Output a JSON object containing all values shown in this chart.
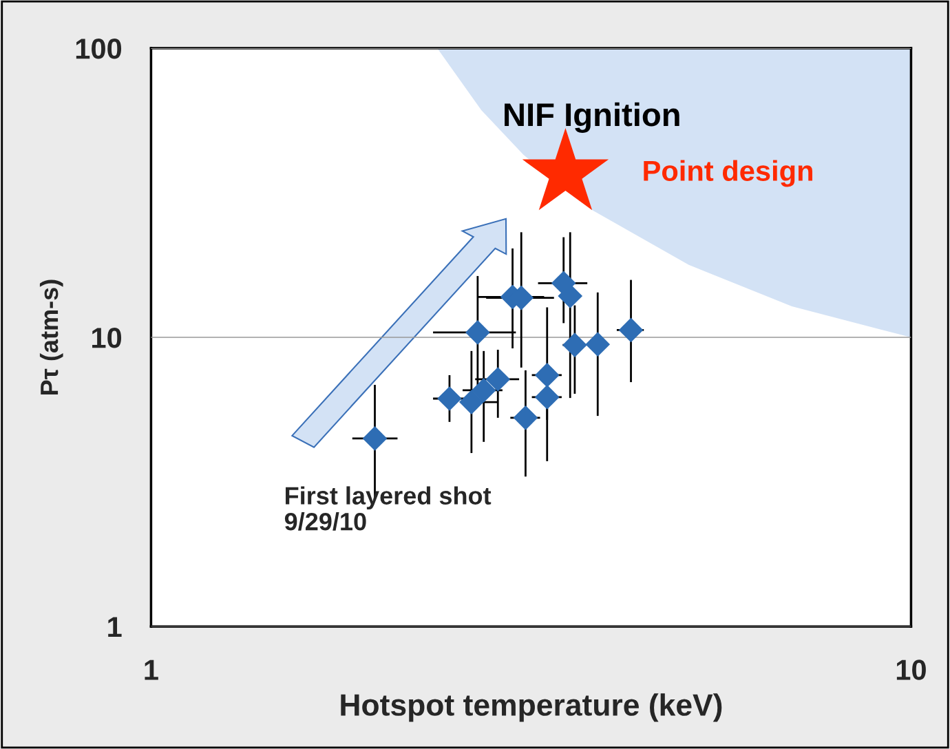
{
  "chart_data": {
    "type": "scatter",
    "xlabel": "Hotspot temperature (keV)",
    "ylabel": "Pτ (atm-s)",
    "log": "xy",
    "xlim": [
      1,
      10
    ],
    "ylim": [
      1,
      100
    ],
    "xticks": [
      1,
      10
    ],
    "yticks": [
      1,
      10,
      100
    ],
    "grid": "y",
    "legend": false,
    "series": [
      {
        "name": "NIF Ignition",
        "type": "area",
        "color": "#d3e2f5",
        "x": [
          2.38,
          2.72,
          3.09,
          3.8,
          5.1,
          6.97,
          10,
          10
        ],
        "values": [
          100,
          61.1,
          42.8,
          27.6,
          17.8,
          12.8,
          10,
          100
        ]
      },
      {
        "marker": "diamond",
        "color": "#2e6db4",
        "x": [
          1.97,
          2.47,
          2.64,
          2.74,
          2.86,
          2.69,
          2.99,
          3.07,
          3.49,
          3.56,
          3.61,
          3.87,
          4.28,
          3.32,
          3.32,
          3.11
        ],
        "values": [
          4.47,
          6.14,
          5.97,
          6.56,
          7.16,
          10.4,
          13.8,
          13.7,
          15.4,
          13.9,
          9.41,
          9.46,
          10.6,
          7.4,
          6.21,
          5.27
        ],
        "errors": [
          [
            2.8,
            6.85
          ],
          [
            5.1,
            7.4
          ],
          [
            3.98,
            8.97
          ],
          [
            4.35,
            8.97
          ],
          [
            5.27,
            9.06
          ],
          [
            6.63,
            16.3
          ],
          [
            9.16,
            20.3
          ],
          [
            7.86,
            23.1
          ],
          [
            11.2,
            22.2
          ],
          [
            6.17,
            23.1
          ],
          [
            6.38,
            12.9
          ],
          [
            5.35,
            14.3
          ],
          [
            7.0,
            15.8
          ],
          [
            5.18,
            12.7
          ],
          [
            3.73,
            6.21
          ],
          [
            3.3,
            7.69
          ]
        ],
        "xerrors": [
          [
            1.84,
            2.11
          ],
          [
            2.35,
            2.6
          ],
          [
            2.57,
            2.86
          ],
          [
            2.57,
            2.9
          ],
          [
            2.67,
            3.05
          ],
          [
            2.35,
            3.02
          ],
          [
            2.69,
            3.29
          ],
          [
            2.76,
            3.39
          ],
          [
            3.23,
            3.75
          ],
          null,
          [
            3.48,
            3.73
          ],
          null,
          [
            4.1,
            4.45
          ],
          [
            3.17,
            3.47
          ],
          [
            3.17,
            3.47
          ],
          [
            2.97,
            3.25
          ]
        ]
      },
      {
        "name": "Point design",
        "type": "scatter",
        "marker": "star",
        "color": "#ff2a00",
        "x": [
          3.51
        ],
        "values": [
          36.9
        ]
      }
    ],
    "annotations": [
      "First layered shot\n9/29/10"
    ]
  }
}
